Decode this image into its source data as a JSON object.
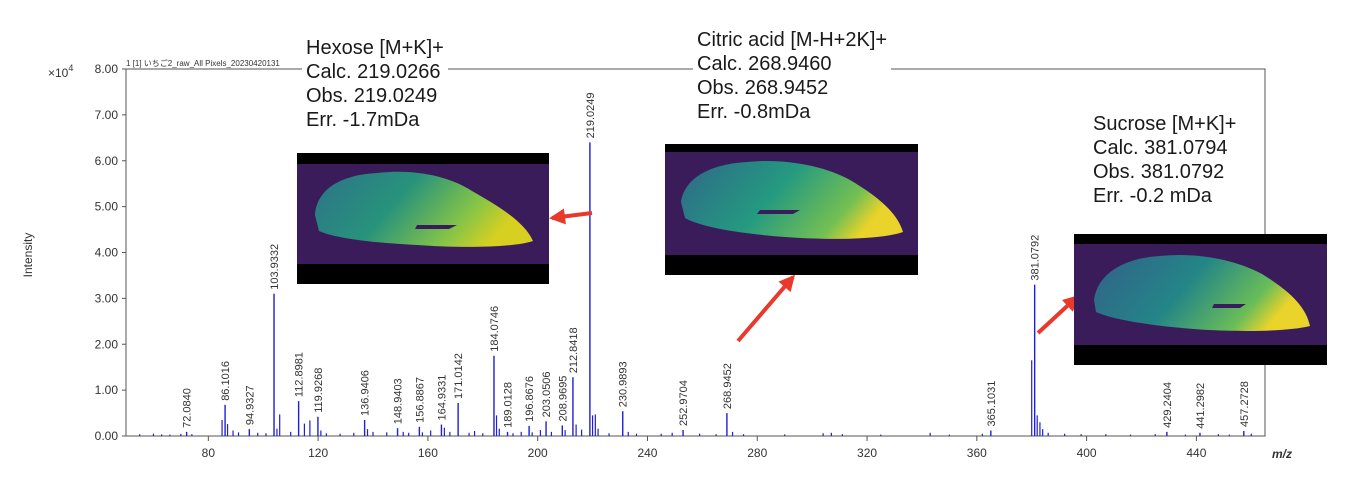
{
  "chart_data": {
    "type": "mass-spectrum",
    "file_label": "1 [1] いちご2_raw_All Pixels_20230420131",
    "xlabel": "m/z",
    "ylabel": "Intensity",
    "y_multiplier": "×10",
    "y_multiplier_exp": "4",
    "xlim": [
      50,
      465
    ],
    "ylim": [
      0,
      80000
    ],
    "x_ticks": [
      80,
      120,
      160,
      200,
      240,
      280,
      320,
      360,
      400,
      440
    ],
    "y_ticks": [
      {
        "value": 0,
        "label": "0.00"
      },
      {
        "value": 10000,
        "label": "1.00"
      },
      {
        "value": 20000,
        "label": "2.00"
      },
      {
        "value": 30000,
        "label": "3.00"
      },
      {
        "value": 40000,
        "label": "4.00"
      },
      {
        "value": 50000,
        "label": "5.00"
      },
      {
        "value": 60000,
        "label": "6.00"
      },
      {
        "value": 70000,
        "label": "7.00"
      },
      {
        "value": 80000,
        "label": "8.00"
      }
    ],
    "color": "#1f1fd6",
    "labeled_peaks": [
      {
        "mz": 72.084,
        "label": "72.0840",
        "intensity": 900
      },
      {
        "mz": 86.1016,
        "label": "86.1016",
        "intensity": 6800
      },
      {
        "mz": 94.9327,
        "label": "94.9327",
        "intensity": 1500
      },
      {
        "mz": 103.9332,
        "label": "103.9332",
        "intensity": 31000
      },
      {
        "mz": 112.8981,
        "label": "112.8981",
        "intensity": 7600
      },
      {
        "mz": 119.9268,
        "label": "119.9268",
        "intensity": 4200
      },
      {
        "mz": 136.9406,
        "label": "136.9406",
        "intensity": 3500
      },
      {
        "mz": 148.9403,
        "label": "148.9403",
        "intensity": 1700
      },
      {
        "mz": 156.8867,
        "label": "156.8867",
        "intensity": 2000
      },
      {
        "mz": 164.9331,
        "label": "164.9331",
        "intensity": 2500
      },
      {
        "mz": 171.0142,
        "label": "171.0142",
        "intensity": 7200
      },
      {
        "mz": 184.0746,
        "label": "184.0746",
        "intensity": 17500
      },
      {
        "mz": 189.0128,
        "label": "189.0128",
        "intensity": 900
      },
      {
        "mz": 196.8676,
        "label": "196.8676",
        "intensity": 2200
      },
      {
        "mz": 203.0506,
        "label": "203.0506",
        "intensity": 3200
      },
      {
        "mz": 208.9695,
        "label": "208.9695",
        "intensity": 2300
      },
      {
        "mz": 212.8418,
        "label": "212.8418",
        "intensity": 12800
      },
      {
        "mz": 219.0249,
        "label": "219.0249",
        "intensity": 64000
      },
      {
        "mz": 230.9893,
        "label": "230.9893",
        "intensity": 5400
      },
      {
        "mz": 252.9704,
        "label": "252.9704",
        "intensity": 1300
      },
      {
        "mz": 268.9452,
        "label": "268.9452",
        "intensity": 5000
      },
      {
        "mz": 365.1031,
        "label": "365.1031",
        "intensity": 1200
      },
      {
        "mz": 381.0792,
        "label": "381.0792",
        "intensity": 33000
      },
      {
        "mz": 429.2404,
        "label": "429.2404",
        "intensity": 900
      },
      {
        "mz": 441.2982,
        "label": "441.2982",
        "intensity": 700
      },
      {
        "mz": 457.2728,
        "label": "457.2728",
        "intensity": 1100
      }
    ],
    "minor_peaks": [
      {
        "mz": 55,
        "intensity": 400
      },
      {
        "mz": 60,
        "intensity": 500
      },
      {
        "mz": 63,
        "intensity": 350
      },
      {
        "mz": 66,
        "intensity": 300
      },
      {
        "mz": 70,
        "intensity": 450
      },
      {
        "mz": 74,
        "intensity": 400
      },
      {
        "mz": 85,
        "intensity": 3500
      },
      {
        "mz": 87,
        "intensity": 2600
      },
      {
        "mz": 89,
        "intensity": 1200
      },
      {
        "mz": 91,
        "intensity": 800
      },
      {
        "mz": 98,
        "intensity": 700
      },
      {
        "mz": 101,
        "intensity": 600
      },
      {
        "mz": 105,
        "intensity": 1600
      },
      {
        "mz": 106,
        "intensity": 4700
      },
      {
        "mz": 110,
        "intensity": 900
      },
      {
        "mz": 115,
        "intensity": 2700
      },
      {
        "mz": 117,
        "intensity": 3400
      },
      {
        "mz": 121,
        "intensity": 1200
      },
      {
        "mz": 123,
        "intensity": 600
      },
      {
        "mz": 128,
        "intensity": 500
      },
      {
        "mz": 133,
        "intensity": 700
      },
      {
        "mz": 138,
        "intensity": 1500
      },
      {
        "mz": 140,
        "intensity": 900
      },
      {
        "mz": 145,
        "intensity": 800
      },
      {
        "mz": 151,
        "intensity": 900
      },
      {
        "mz": 153,
        "intensity": 700
      },
      {
        "mz": 158,
        "intensity": 800
      },
      {
        "mz": 161,
        "intensity": 1200
      },
      {
        "mz": 166,
        "intensity": 1800
      },
      {
        "mz": 168,
        "intensity": 900
      },
      {
        "mz": 175,
        "intensity": 700
      },
      {
        "mz": 177,
        "intensity": 1100
      },
      {
        "mz": 180,
        "intensity": 600
      },
      {
        "mz": 185,
        "intensity": 4500
      },
      {
        "mz": 186,
        "intensity": 1600
      },
      {
        "mz": 191,
        "intensity": 600
      },
      {
        "mz": 194,
        "intensity": 900
      },
      {
        "mz": 198,
        "intensity": 800
      },
      {
        "mz": 201,
        "intensity": 1300
      },
      {
        "mz": 205,
        "intensity": 900
      },
      {
        "mz": 210,
        "intensity": 1300
      },
      {
        "mz": 214,
        "intensity": 2500
      },
      {
        "mz": 216,
        "intensity": 1400
      },
      {
        "mz": 220,
        "intensity": 4500
      },
      {
        "mz": 221,
        "intensity": 4700
      },
      {
        "mz": 222,
        "intensity": 1600
      },
      {
        "mz": 226,
        "intensity": 600
      },
      {
        "mz": 233,
        "intensity": 900
      },
      {
        "mz": 236,
        "intensity": 500
      },
      {
        "mz": 245,
        "intensity": 500
      },
      {
        "mz": 249,
        "intensity": 700
      },
      {
        "mz": 259,
        "intensity": 500
      },
      {
        "mz": 265,
        "intensity": 400
      },
      {
        "mz": 271,
        "intensity": 900
      },
      {
        "mz": 275,
        "intensity": 400
      },
      {
        "mz": 290,
        "intensity": 350
      },
      {
        "mz": 304,
        "intensity": 600
      },
      {
        "mz": 307,
        "intensity": 700
      },
      {
        "mz": 311,
        "intensity": 400
      },
      {
        "mz": 325,
        "intensity": 300
      },
      {
        "mz": 343,
        "intensity": 700
      },
      {
        "mz": 350,
        "intensity": 300
      },
      {
        "mz": 362,
        "intensity": 500
      },
      {
        "mz": 380,
        "intensity": 16500
      },
      {
        "mz": 382,
        "intensity": 4500
      },
      {
        "mz": 383,
        "intensity": 3000
      },
      {
        "mz": 384,
        "intensity": 1500
      },
      {
        "mz": 386,
        "intensity": 700
      },
      {
        "mz": 392,
        "intensity": 500
      },
      {
        "mz": 398,
        "intensity": 400
      },
      {
        "mz": 407,
        "intensity": 400
      },
      {
        "mz": 416,
        "intensity": 300
      },
      {
        "mz": 425,
        "intensity": 400
      },
      {
        "mz": 436,
        "intensity": 300
      },
      {
        "mz": 448,
        "intensity": 400
      },
      {
        "mz": 452,
        "intensity": 300
      },
      {
        "mz": 460,
        "intensity": 500
      }
    ],
    "arrow_color": "#e8392c"
  },
  "annotations": [
    {
      "id": "hexose",
      "lines": [
        "Hexose [M+K]+",
        "Calc. 219.0266",
        "Obs. 219.0249",
        "Err. -1.7mDa"
      ]
    },
    {
      "id": "citric",
      "lines": [
        "Citric acid [M-H+2K]+",
        "Calc. 268.9460",
        "Obs. 268.9452",
        "Err. -0.8mDa"
      ]
    },
    {
      "id": "sucrose",
      "lines": [
        "Sucrose [M+K]+",
        "Calc. 381.0794",
        "Obs. 381.0792",
        "Err. -0.2 mDa"
      ]
    }
  ]
}
